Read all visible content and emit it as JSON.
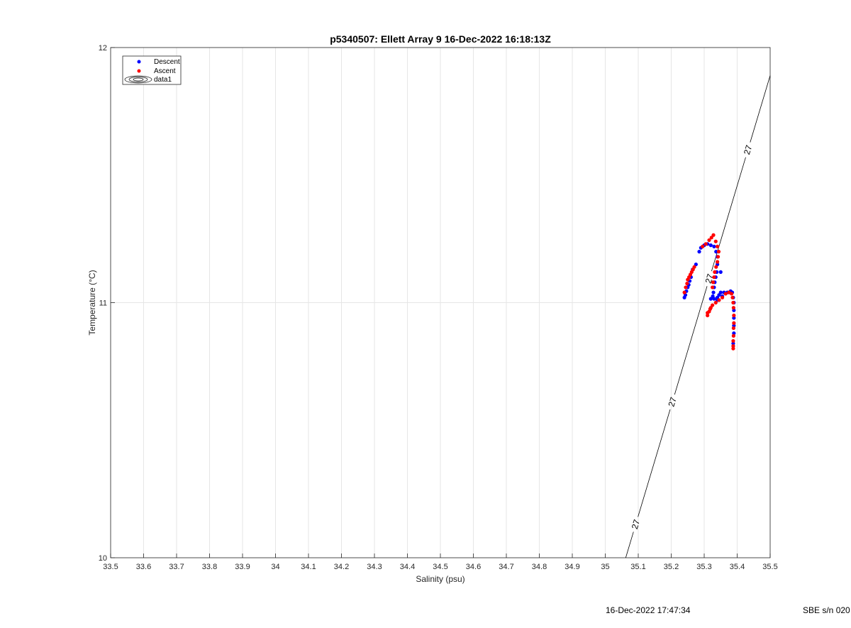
{
  "chart_data": {
    "type": "scatter",
    "title": "p5340507: Ellett Array 9 16-Dec-2022 16:18:13Z",
    "xlabel": "Salinity (psu)",
    "ylabel": "Temperature (°C)",
    "xlim": [
      33.5,
      35.5
    ],
    "ylim": [
      10,
      12
    ],
    "xticks": [
      "33.5",
      "33.6",
      "33.7",
      "33.8",
      "33.9",
      "34",
      "34.1",
      "34.2",
      "34.3",
      "34.4",
      "34.5",
      "34.6",
      "34.7",
      "34.8",
      "34.9",
      "35",
      "35.1",
      "35.2",
      "35.3",
      "35.4",
      "35.5"
    ],
    "yticks": [
      "10",
      "11",
      "12"
    ],
    "grid": true,
    "legend_position": "top-left",
    "legend": [
      "Descent",
      "Ascent",
      "data1"
    ],
    "colors": {
      "descent": "#0000ff",
      "ascent": "#ff0000",
      "contour": "#000000",
      "grid": "#e6e6e6",
      "axis": "#262626"
    },
    "series": [
      {
        "name": "Descent",
        "points": [
          [
            35.24,
            11.02
          ],
          [
            35.243,
            11.03
          ],
          [
            35.246,
            11.045
          ],
          [
            35.25,
            11.06
          ],
          [
            35.253,
            11.07
          ],
          [
            35.256,
            11.085
          ],
          [
            35.26,
            11.1
          ],
          [
            35.265,
            11.13
          ],
          [
            35.275,
            11.15
          ],
          [
            35.285,
            11.2
          ],
          [
            35.29,
            11.215
          ],
          [
            35.3,
            11.225
          ],
          [
            35.31,
            11.23
          ],
          [
            35.32,
            11.225
          ],
          [
            35.33,
            11.22
          ],
          [
            35.336,
            11.2
          ],
          [
            35.34,
            11.18
          ],
          [
            35.34,
            11.15
          ],
          [
            35.338,
            11.12
          ],
          [
            35.335,
            11.1
          ],
          [
            35.332,
            11.08
          ],
          [
            35.33,
            11.06
          ],
          [
            35.328,
            11.04
          ],
          [
            35.326,
            11.025
          ],
          [
            35.33,
            11.015
          ],
          [
            35.34,
            11.02
          ],
          [
            35.345,
            11.03
          ],
          [
            35.35,
            11.04
          ],
          [
            35.36,
            11.04
          ],
          [
            35.37,
            11.04
          ],
          [
            35.38,
            11.045
          ],
          [
            35.385,
            11.04
          ],
          [
            35.388,
            11.02
          ],
          [
            35.39,
            11.0
          ],
          [
            35.39,
            10.97
          ],
          [
            35.39,
            10.94
          ],
          [
            35.39,
            10.91
          ],
          [
            35.39,
            10.88
          ],
          [
            35.388,
            10.84
          ],
          [
            35.35,
            11.12
          ],
          [
            35.34,
            11.01
          ],
          [
            35.355,
            11.025
          ],
          [
            35.32,
            11.015
          ]
        ]
      },
      {
        "name": "Ascent",
        "points": [
          [
            35.24,
            11.04
          ],
          [
            35.244,
            11.06
          ],
          [
            35.248,
            11.075
          ],
          [
            35.25,
            11.09
          ],
          [
            35.254,
            11.1
          ],
          [
            35.258,
            11.11
          ],
          [
            35.262,
            11.12
          ],
          [
            35.266,
            11.13
          ],
          [
            35.27,
            11.14
          ],
          [
            35.295,
            11.22
          ],
          [
            35.305,
            11.23
          ],
          [
            35.315,
            11.245
          ],
          [
            35.322,
            11.255
          ],
          [
            35.328,
            11.265
          ],
          [
            35.335,
            11.24
          ],
          [
            35.34,
            11.22
          ],
          [
            35.344,
            11.2
          ],
          [
            35.342,
            11.18
          ],
          [
            35.34,
            11.16
          ],
          [
            35.336,
            11.14
          ],
          [
            35.332,
            11.12
          ],
          [
            35.33,
            11.1
          ],
          [
            35.327,
            11.08
          ],
          [
            35.325,
            11.06
          ],
          [
            35.31,
            10.95
          ],
          [
            35.315,
            10.965
          ],
          [
            35.32,
            10.98
          ],
          [
            35.325,
            10.99
          ],
          [
            35.335,
            11.0
          ],
          [
            35.345,
            11.01
          ],
          [
            35.355,
            11.02
          ],
          [
            35.365,
            11.035
          ],
          [
            35.375,
            11.04
          ],
          [
            35.383,
            11.035
          ],
          [
            35.386,
            11.02
          ],
          [
            35.388,
            11.0
          ],
          [
            35.389,
            10.98
          ],
          [
            35.39,
            10.95
          ],
          [
            35.39,
            10.92
          ],
          [
            35.389,
            10.9
          ],
          [
            35.389,
            10.87
          ],
          [
            35.388,
            10.85
          ],
          [
            35.388,
            10.83
          ],
          [
            35.388,
            10.82
          ],
          [
            35.31,
            10.96
          ],
          [
            35.318,
            10.975
          ]
        ]
      }
    ],
    "contour": {
      "label": "27",
      "line": [
        [
          35.062,
          10.0
        ],
        [
          35.5,
          11.89
        ]
      ],
      "label_positions": [
        [
          35.095,
          10.13
        ],
        [
          35.205,
          10.61
        ],
        [
          35.3,
          11.1
        ],
        [
          35.43,
          11.6
        ]
      ]
    }
  },
  "footer": {
    "timestamp": "16-Dec-2022 17:47:34",
    "serial": "SBE s/n 020"
  }
}
